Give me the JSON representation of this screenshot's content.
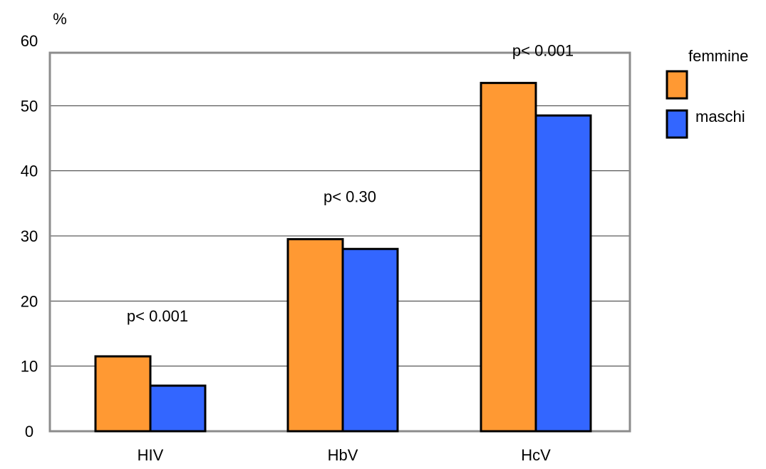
{
  "chart_data": {
    "type": "bar",
    "title": "",
    "xlabel": "",
    "ylabel": "",
    "y_unit": "%",
    "ylim": [
      0,
      60
    ],
    "yticks": [
      0,
      10,
      20,
      30,
      40,
      50,
      60
    ],
    "grid": true,
    "legend_position": "right",
    "categories": [
      "HIV",
      "HbV",
      "HcV"
    ],
    "series": [
      {
        "name": "femmine",
        "color": "#ff9933",
        "values": [
          11.5,
          29.5,
          53.5
        ]
      },
      {
        "name": "maschi",
        "color": "#3366ff",
        "values": [
          7,
          28,
          48.5
        ]
      }
    ],
    "annotations": [
      {
        "category": "HIV",
        "text": "p< 0.001"
      },
      {
        "category": "HbV",
        "text": "p< 0.30"
      },
      {
        "category": "HcV",
        "text": "p< 0.001"
      }
    ]
  }
}
